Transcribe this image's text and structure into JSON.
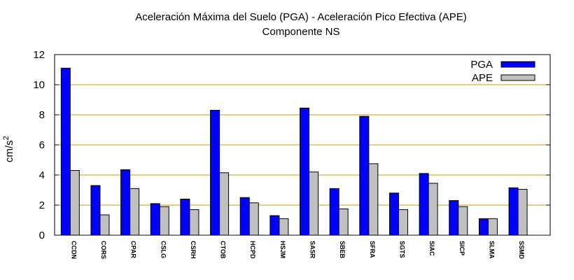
{
  "chart_data": {
    "type": "bar",
    "title": "Aceleración Máxima del Suelo (PGA) -  Aceleración Pico Efectiva (APE)",
    "subtitle": "Componente NS",
    "xlabel": "",
    "ylabel": "cm/s",
    "ylabel_superscript": "2",
    "ylim": [
      0,
      12
    ],
    "yticks": [
      0,
      2,
      4,
      6,
      8,
      10,
      12
    ],
    "grid": "horizontal",
    "legend_position": "top-right",
    "categories": [
      "CCDN",
      "CORS",
      "CPAR",
      "CSLG",
      "CSRH",
      "CTOB",
      "HCPD",
      "HSJM",
      "SASR",
      "SBEB",
      "SFRA",
      "SGTS",
      "SIAC",
      "SICP",
      "SLMA",
      "SSMD"
    ],
    "series": [
      {
        "name": "PGA",
        "color": "#0000ff",
        "values": [
          11.1,
          3.3,
          4.35,
          2.1,
          2.4,
          8.3,
          2.5,
          1.3,
          8.45,
          3.1,
          7.9,
          2.8,
          4.1,
          2.3,
          1.1,
          3.15
        ]
      },
      {
        "name": "APE",
        "color": "#c0c0c0",
        "values": [
          4.3,
          1.35,
          3.1,
          1.9,
          1.7,
          4.15,
          2.15,
          1.1,
          4.2,
          1.75,
          4.75,
          1.7,
          3.45,
          1.9,
          1.1,
          3.05
        ]
      }
    ],
    "colors": {
      "grid": "#c8a000",
      "axis": "#000000"
    }
  }
}
